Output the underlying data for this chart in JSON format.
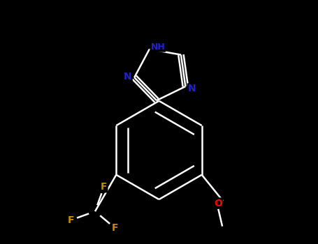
{
  "background_color": "#000000",
  "bond_color": "#ffffff",
  "atom_colors": {
    "N": "#2222cc",
    "NH": "#2222cc",
    "F": "#cc8800",
    "O": "#ff0000",
    "C": "#ffffff"
  },
  "figsize": [
    4.55,
    3.5
  ],
  "dpi": 100,
  "bx": 5.0,
  "by": 3.8,
  "br": 1.05,
  "tr": 0.58
}
